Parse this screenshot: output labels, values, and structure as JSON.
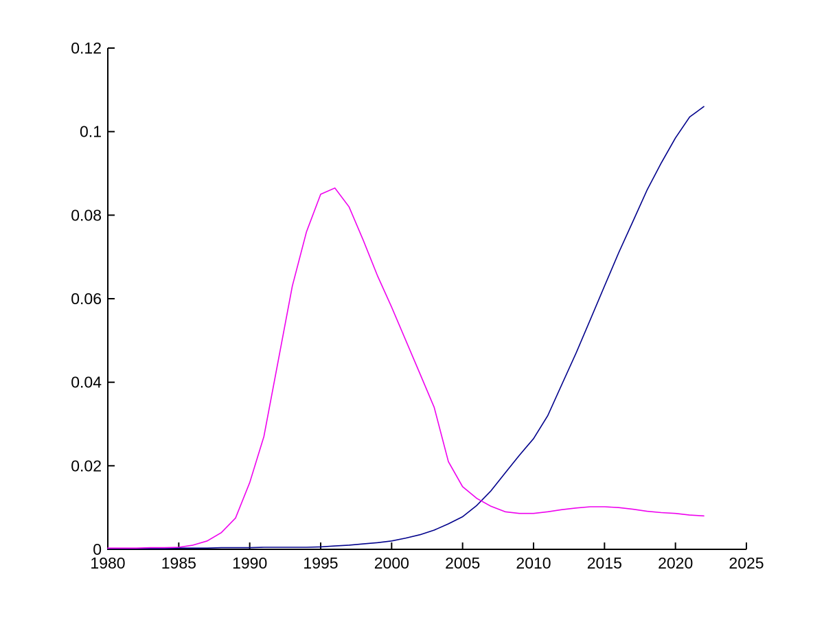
{
  "figure": {
    "background": "#ffffff",
    "axis_color": "#000000",
    "title": "",
    "legend": "none"
  },
  "chart_data": {
    "type": "line",
    "title": "",
    "xlabel": "",
    "ylabel": "",
    "xlim": [
      1980,
      2025
    ],
    "ylim": [
      0,
      0.12
    ],
    "grid": false,
    "legend_position": "none",
    "xticks": {
      "values": [
        1980,
        1985,
        1990,
        1995,
        2000,
        2005,
        2010,
        2015,
        2020,
        2025
      ],
      "labels": [
        "1980",
        "1985",
        "1990",
        "1995",
        "2000",
        "2005",
        "2010",
        "2015",
        "2020",
        "2025"
      ]
    },
    "yticks": {
      "values": [
        0,
        0.02,
        0.04,
        0.06,
        0.08,
        0.1,
        0.12
      ],
      "labels": [
        "0",
        "0.02",
        "0.04",
        "0.06",
        "0.08",
        "0.1",
        "0.12"
      ]
    },
    "x": [
      1980,
      1981,
      1982,
      1983,
      1984,
      1985,
      1986,
      1987,
      1988,
      1989,
      1990,
      1991,
      1992,
      1993,
      1994,
      1995,
      1996,
      1997,
      1998,
      1999,
      2000,
      2001,
      2002,
      2003,
      2004,
      2005,
      2006,
      2007,
      2008,
      2009,
      2010,
      2011,
      2012,
      2013,
      2014,
      2015,
      2016,
      2017,
      2018,
      2019,
      2020,
      2021,
      2022
    ],
    "series": [
      {
        "name": "navy-line",
        "color": "#00008B",
        "values": [
          0.0002,
          0.0002,
          0.0002,
          0.0002,
          0.0002,
          0.0003,
          0.0003,
          0.0003,
          0.0004,
          0.0004,
          0.0004,
          0.0005,
          0.0005,
          0.0005,
          0.0005,
          0.0006,
          0.0008,
          0.001,
          0.0013,
          0.0016,
          0.002,
          0.0027,
          0.0035,
          0.0046,
          0.0061,
          0.0078,
          0.0105,
          0.014,
          0.0183,
          0.0225,
          0.0265,
          0.032,
          0.0395,
          0.047,
          0.055,
          0.063,
          0.071,
          0.0785,
          0.086,
          0.0925,
          0.0985,
          0.1035,
          0.106
        ]
      },
      {
        "name": "magenta-line",
        "color": "#EE00EE",
        "values": [
          0.0003,
          0.0003,
          0.0003,
          0.0004,
          0.0004,
          0.0005,
          0.001,
          0.002,
          0.004,
          0.0075,
          0.016,
          0.027,
          0.045,
          0.063,
          0.076,
          0.085,
          0.0865,
          0.082,
          0.074,
          0.0655,
          0.058,
          0.05,
          0.042,
          0.034,
          0.021,
          0.015,
          0.0122,
          0.0103,
          0.009,
          0.0086,
          0.0086,
          0.009,
          0.0095,
          0.0099,
          0.0102,
          0.0102,
          0.01,
          0.0096,
          0.0091,
          0.0088,
          0.0086,
          0.0082,
          0.008
        ]
      }
    ]
  }
}
